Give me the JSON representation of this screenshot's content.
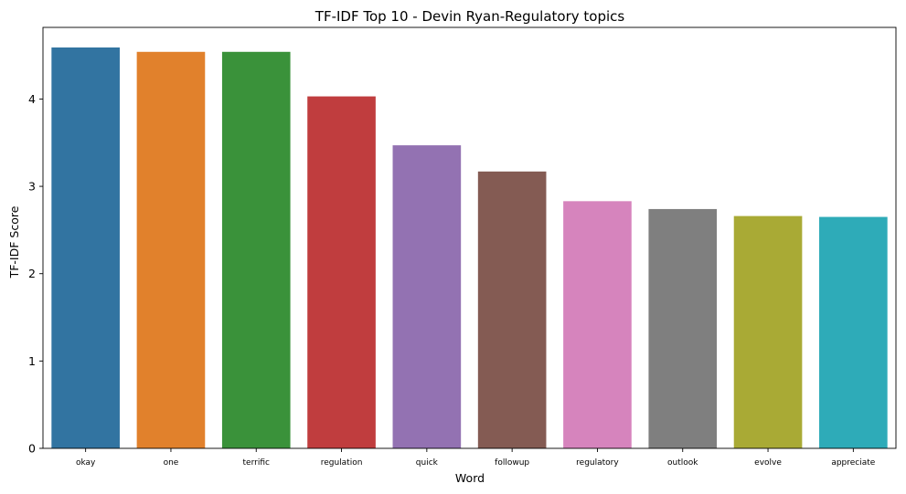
{
  "chart_data": {
    "type": "bar",
    "title": "TF-IDF Top 10 - Devin Ryan-Regulatory topics",
    "xlabel": "Word",
    "ylabel": "TF-IDF Score",
    "categories": [
      "okay",
      "one",
      "terrific",
      "regulation",
      "quick",
      "followup",
      "regulatory",
      "outlook",
      "evolve",
      "appreciate"
    ],
    "values": [
      4.59,
      4.54,
      4.54,
      4.03,
      3.47,
      3.17,
      2.83,
      2.74,
      2.66,
      2.65
    ],
    "colors": [
      "#3274a1",
      "#e1812c",
      "#3a923a",
      "#c03d3e",
      "#9372b2",
      "#845b53",
      "#d684bd",
      "#7f7f7f",
      "#a9aa35",
      "#2eabb8"
    ],
    "yticks": [
      "0",
      "1",
      "2",
      "3",
      "4"
    ],
    "ylim": [
      0,
      4.82
    ],
    "grid": false,
    "legend": "none"
  }
}
